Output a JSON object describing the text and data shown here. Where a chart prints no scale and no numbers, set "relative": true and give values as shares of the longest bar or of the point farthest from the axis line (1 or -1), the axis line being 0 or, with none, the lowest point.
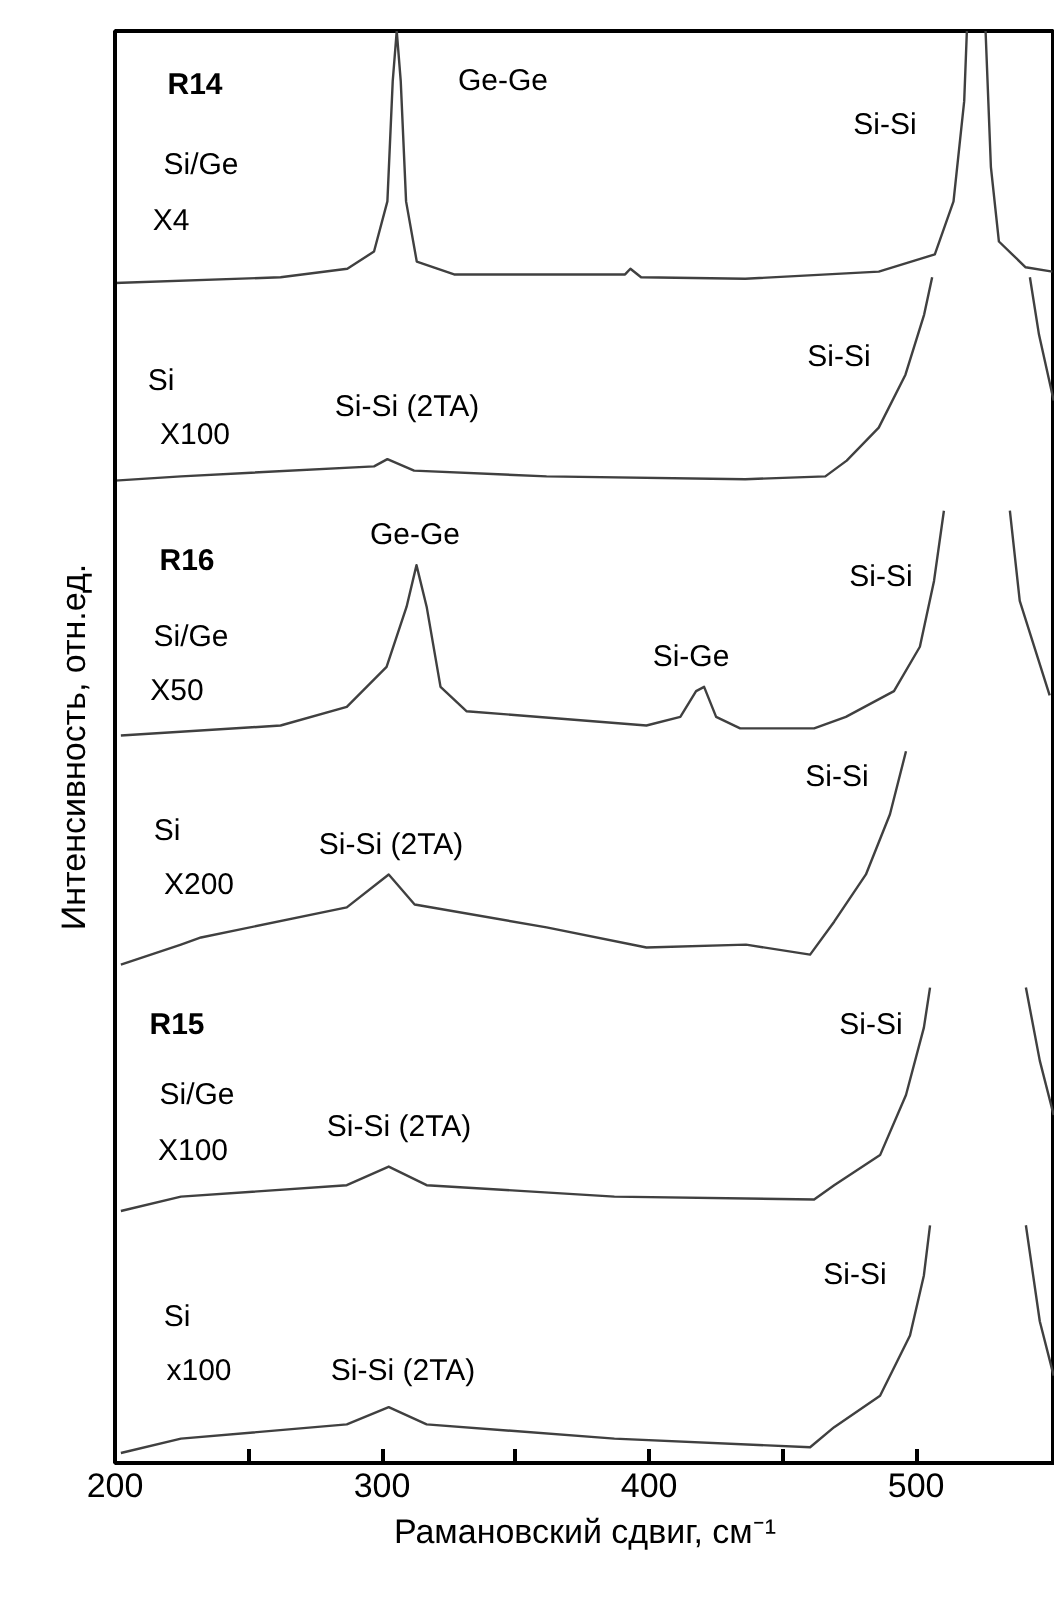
{
  "chart_data": {
    "type": "line",
    "relative": true,
    "xlabel": "Рамановский сдвиг, см⁻¹",
    "ylabel": "Интенсивность, отн.ед.",
    "xlim": [
      200,
      552
    ],
    "xticks": [
      200,
      {
        "value": 250,
        "label": null
      },
      300,
      {
        "value": 350,
        "label": null
      },
      400,
      {
        "value": 450,
        "label": null
      },
      500
    ],
    "grid": false,
    "series": [
      {
        "color": "#404040",
        "x": [
          200,
          262,
          287,
          297,
          302,
          304,
          305.5,
          307,
          309,
          313,
          327,
          391,
          393,
          397,
          436,
          486,
          507,
          514,
          518,
          519,
          522,
          526,
          528,
          531,
          541,
          551
        ],
        "values": [
          0.824,
          0.828,
          0.834,
          0.846,
          0.881,
          0.965,
          1.0,
          0.965,
          0.881,
          0.839,
          0.83,
          0.83,
          0.834,
          0.828,
          0.827,
          0.832,
          0.844,
          0.881,
          0.951,
          1.0,
          null,
          1.0,
          0.905,
          0.853,
          0.835,
          0.832
        ]
      },
      {
        "color": "#404040",
        "x": [
          200,
          224.7,
          297,
          302,
          312,
          361.6,
          436,
          466,
          474,
          486,
          496,
          503,
          506,
          524,
          542.6,
          546,
          551.5
        ],
        "values": [
          0.686,
          0.689,
          0.696,
          0.701,
          0.693,
          0.689,
          0.687,
          0.689,
          0.7,
          0.723,
          0.76,
          0.802,
          0.828,
          null,
          0.828,
          0.788,
          0.742
        ]
      },
      {
        "color": "#404040",
        "x": [
          202.2,
          262,
          286.8,
          301.7,
          309.2,
          312.9,
          316.7,
          321.9,
          331.6,
          399,
          411.7,
          417.6,
          420.6,
          425.1,
          434.1,
          461.8,
          473.7,
          491.7,
          501.4,
          506.7,
          510.4,
          522,
          535.1,
          538.8,
          550
        ],
        "values": [
          0.508,
          0.515,
          0.528,
          0.556,
          0.598,
          0.627,
          0.598,
          0.542,
          0.525,
          0.515,
          0.521,
          0.539,
          0.542,
          0.521,
          0.513,
          0.513,
          0.521,
          0.539,
          0.57,
          0.616,
          0.665,
          null,
          0.665,
          0.602,
          0.536
        ]
      },
      {
        "color": "#404040",
        "x": [
          202.2,
          224.7,
          232.2,
          286.8,
          302.5,
          312.2,
          361.6,
          399,
          436.3,
          460.3,
          469.3,
          481.2,
          490.2,
          496.2
        ],
        "values": [
          0.348,
          0.362,
          0.367,
          0.388,
          0.411,
          0.39,
          0.374,
          0.36,
          0.362,
          0.355,
          0.378,
          0.411,
          0.453,
          0.497
        ]
      },
      {
        "color": "#404040",
        "x": [
          202.2,
          224.7,
          286.8,
          302.5,
          316.7,
          387,
          461.8,
          469.3,
          486.5,
          496.2,
          502.9,
          505.2,
          523,
          541.1,
          546.3,
          551.5
        ],
        "values": [
          0.176,
          0.186,
          0.194,
          0.207,
          0.194,
          0.186,
          0.184,
          0.194,
          0.215,
          0.257,
          0.304,
          0.332,
          null,
          0.332,
          0.281,
          0.243
        ]
      },
      {
        "color": "#404040",
        "x": [
          202.2,
          224.7,
          286.8,
          302.5,
          316.7,
          387,
          460.3,
          469.3,
          486.5,
          497.7,
          502.9,
          505.2,
          523,
          541.1,
          546.3,
          551.5
        ],
        "values": [
          0.007,
          0.017,
          0.027,
          0.039,
          0.027,
          0.017,
          0.011,
          0.025,
          0.047,
          0.089,
          0.131,
          0.166,
          null,
          0.166,
          0.099,
          0.061
        ]
      }
    ],
    "annotations": [
      "R14",
      "Si/Ge",
      "X4",
      "Ge-Ge",
      "Si-Si",
      "Si",
      "X100",
      "Si-Si (2TA)",
      "Si-Si",
      "R16",
      "Ge-Ge",
      "Si-Si",
      "Si/Ge",
      "X50",
      "Si-Ge",
      "Si-Si",
      "Si",
      "X200",
      "Si-Si (2TA)",
      "R15",
      "Si-Si",
      "Si/Ge",
      "X100",
      "Si-Si (2TA)",
      "Si-Si",
      "Si",
      "x100",
      "Si-Si (2TA)"
    ]
  }
}
